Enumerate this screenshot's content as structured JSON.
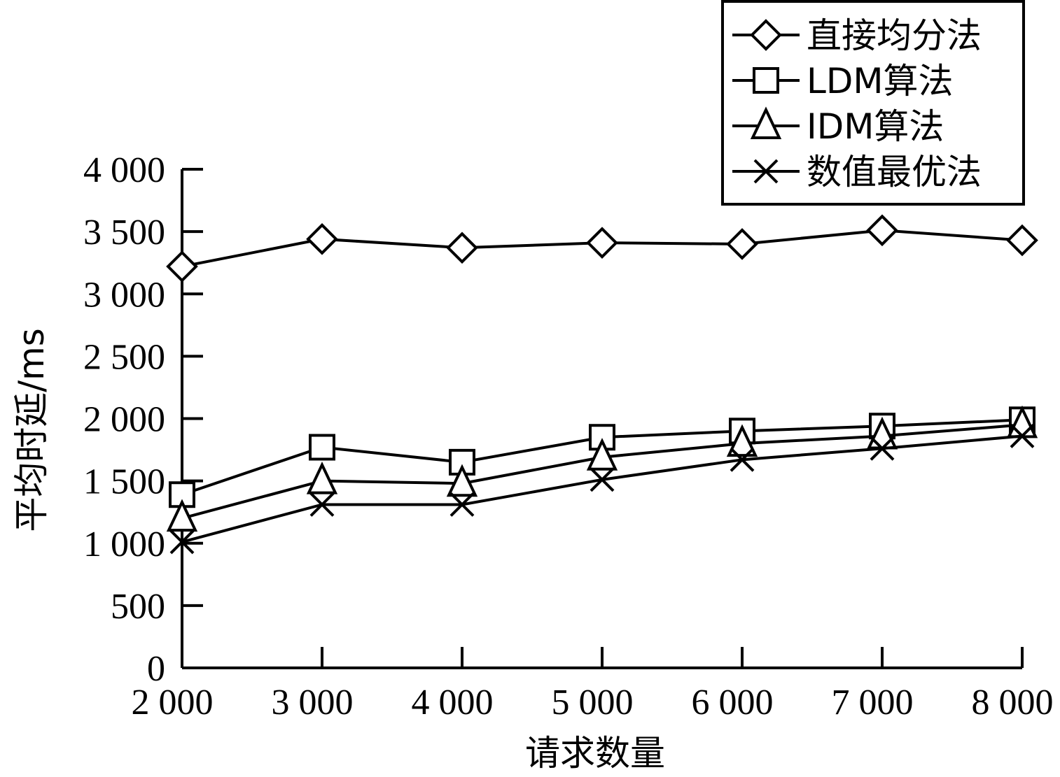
{
  "chart_data": {
    "type": "line",
    "xlabel": "请求数量",
    "ylabel": "平均时延/ms",
    "x": [
      2000,
      3000,
      4000,
      5000,
      6000,
      7000,
      8000
    ],
    "x_tick_labels": [
      "2 000",
      "3 000",
      "4 000",
      "5 000",
      "6 000",
      "7 000",
      "8 000"
    ],
    "y_ticks": [
      0,
      500,
      1000,
      1500,
      2000,
      2500,
      3000,
      3500,
      4000
    ],
    "y_tick_labels": [
      "0",
      "500",
      "1 000",
      "1 500",
      "2 000",
      "2 500",
      "3 000",
      "3 500",
      "4 000"
    ],
    "ylim": [
      0,
      4000
    ],
    "grid": false,
    "legend_position": "top-right",
    "series": [
      {
        "name": "直接均分法",
        "marker": "diamond",
        "values": [
          3220,
          3440,
          3370,
          3410,
          3400,
          3510,
          3430
        ]
      },
      {
        "name": "LDM算法",
        "marker": "square",
        "values": [
          1390,
          1770,
          1650,
          1850,
          1900,
          1940,
          1990
        ]
      },
      {
        "name": "IDM算法",
        "marker": "triangle",
        "values": [
          1200,
          1500,
          1480,
          1690,
          1800,
          1860,
          1950
        ]
      },
      {
        "name": "数值最优法",
        "marker": "x",
        "values": [
          1010,
          1310,
          1310,
          1510,
          1670,
          1760,
          1860
        ]
      }
    ]
  }
}
